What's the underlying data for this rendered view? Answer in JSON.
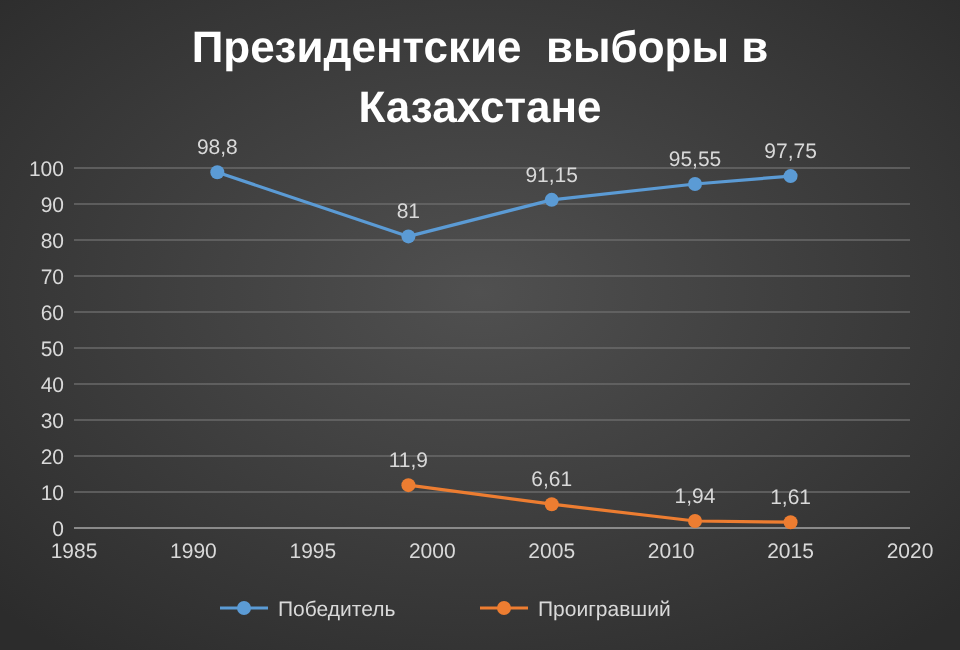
{
  "chart_data": {
    "type": "line",
    "title": "Президентские  выборы в Казахстане",
    "series": [
      {
        "name": "Победитель",
        "color": "#5b9bd5",
        "x": [
          1991,
          1999,
          2005,
          2011,
          2015
        ],
        "values": [
          98.8,
          81,
          91.15,
          95.55,
          97.75
        ],
        "value_labels": [
          "98,8",
          "81",
          "91,15",
          "95,55",
          "97,75"
        ]
      },
      {
        "name": "Проигравший",
        "color": "#ed7d31",
        "x": [
          1999,
          2005,
          2011,
          2015
        ],
        "values": [
          11.9,
          6.61,
          1.94,
          1.61
        ],
        "value_labels": [
          "11,9",
          "6,61",
          "1,94",
          "1,61"
        ]
      }
    ],
    "xlim": [
      1985,
      2020
    ],
    "xticks": [
      1985,
      1990,
      1995,
      2000,
      2005,
      2010,
      2015,
      2020
    ],
    "ylim": [
      0,
      100
    ],
    "yticks": [
      0,
      10,
      20,
      30,
      40,
      50,
      60,
      70,
      80,
      90,
      100
    ],
    "grid": "y",
    "legend": "bottom",
    "marker": "circle",
    "line_style": "solid"
  }
}
